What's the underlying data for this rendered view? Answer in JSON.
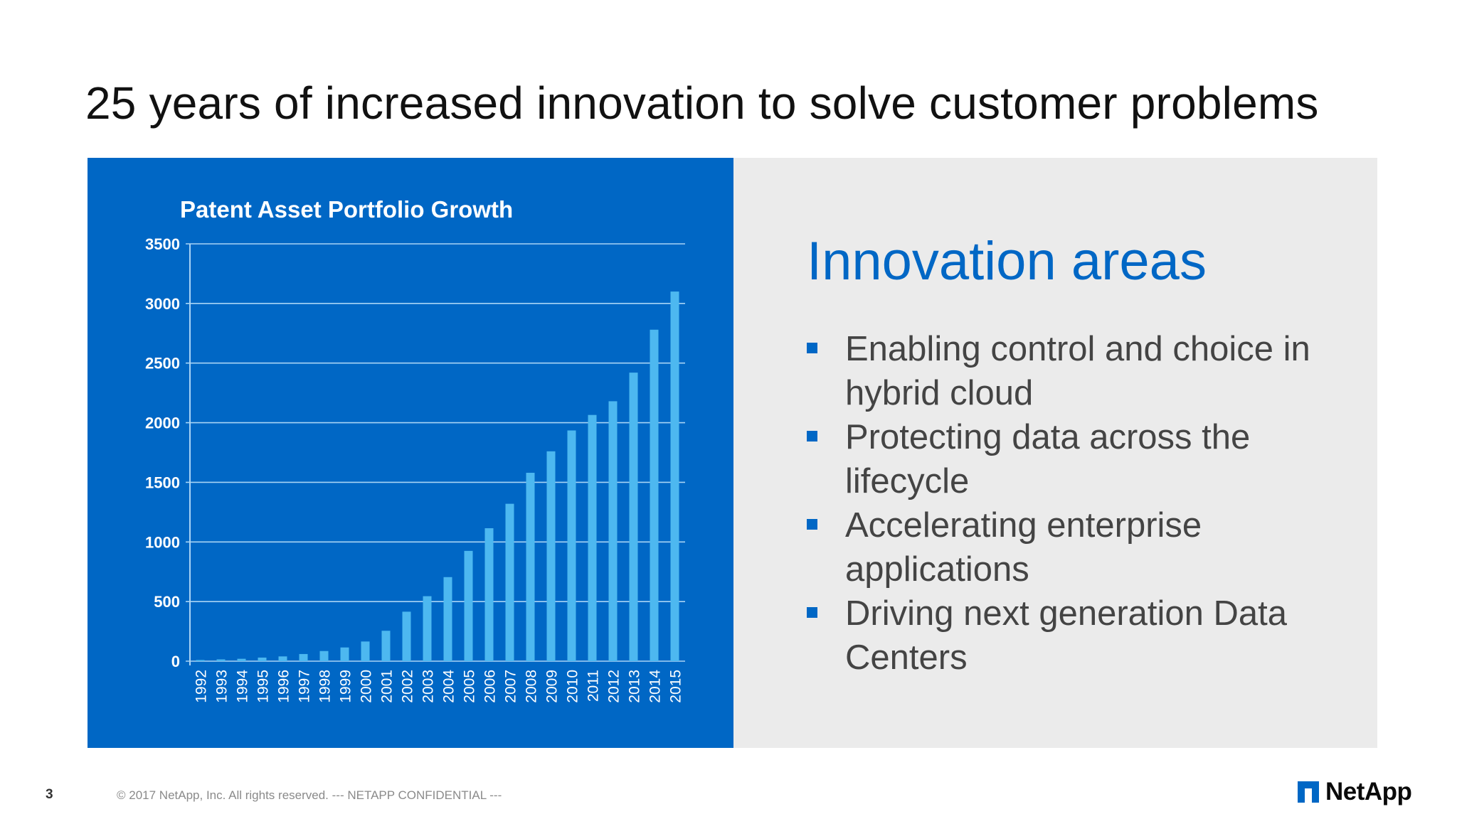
{
  "slide": {
    "title": "25 years of increased innovation to solve customer problems",
    "page_number": "3",
    "copyright": "© 2017 NetApp, Inc. All rights reserved.  --- NETAPP CONFIDENTIAL ---",
    "logo_text": "NetApp"
  },
  "innovation": {
    "heading": "Innovation areas",
    "items": [
      "Enabling control and choice in hybrid cloud",
      "Protecting data across the lifecycle",
      "Accelerating enterprise applications",
      "Driving next generation Data Centers"
    ]
  },
  "colors": {
    "accent_blue": "#0067c5",
    "bar_color": "#4db8f0",
    "panel_gray": "#ebebeb"
  },
  "chart_data": {
    "type": "bar",
    "title": "Patent Asset Portfolio Growth",
    "xlabel": "",
    "ylabel": "",
    "ylim": [
      0,
      3500
    ],
    "yticks": [
      0,
      500,
      1000,
      1500,
      2000,
      2500,
      3000,
      3500
    ],
    "grid": true,
    "categories": [
      "1992",
      "1993",
      "1994",
      "1995",
      "1996",
      "1997",
      "1998",
      "1999",
      "2000",
      "2001",
      "2002",
      "2003",
      "2004",
      "2005",
      "2006",
      "2007",
      "2008",
      "2009",
      "2010",
      "2011",
      "2012",
      "2013",
      "2014",
      "2015"
    ],
    "values": [
      10,
      15,
      20,
      30,
      40,
      60,
      85,
      115,
      165,
      255,
      415,
      545,
      705,
      925,
      1115,
      1320,
      1580,
      1760,
      1935,
      2065,
      2180,
      2420,
      2780,
      3100
    ]
  }
}
